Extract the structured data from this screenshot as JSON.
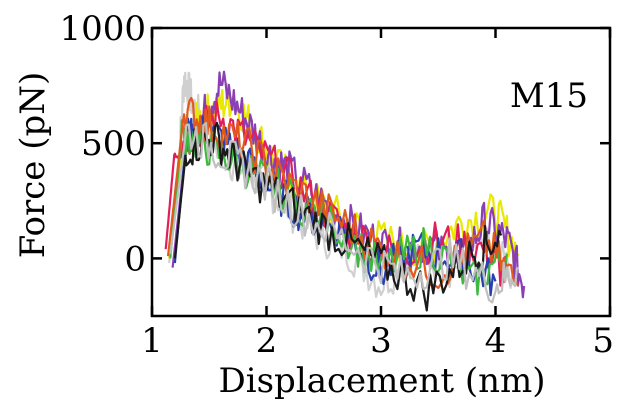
{
  "chart_data": {
    "type": "line",
    "title": "",
    "xlabel": "Displacement (nm)",
    "ylabel": "Force (pN)",
    "annotation": "M15",
    "xlim": [
      1,
      5
    ],
    "ylim": [
      -250,
      1000
    ],
    "x_ticks": [
      1,
      2,
      3,
      4,
      5
    ],
    "y_ticks": [
      0,
      500,
      1000
    ],
    "grid": false,
    "legend": "none",
    "series": [
      {
        "color": "#d0d0d0",
        "x": [
          1.15,
          1.22,
          1.28,
          1.35,
          1.5,
          1.7,
          1.9,
          2.1,
          2.4,
          2.7,
          3.0,
          3.3,
          3.6,
          3.9,
          4.15
        ],
        "y": [
          -20,
          300,
          790,
          680,
          520,
          420,
          360,
          260,
          120,
          40,
          -110,
          20,
          -40,
          60,
          -60
        ]
      },
      {
        "color": "#e8e800",
        "x": [
          1.15,
          1.25,
          1.4,
          1.55,
          1.7,
          1.9,
          2.1,
          2.4,
          2.7,
          3.0,
          3.4,
          3.7,
          4.0,
          4.2
        ],
        "y": [
          0,
          420,
          600,
          650,
          700,
          550,
          400,
          260,
          160,
          80,
          40,
          160,
          200,
          20
        ]
      },
      {
        "color": "#8a3fb5",
        "x": [
          1.18,
          1.3,
          1.45,
          1.6,
          1.8,
          2.0,
          2.2,
          2.5,
          2.8,
          3.1,
          3.4,
          3.7,
          3.9,
          4.1,
          4.25
        ],
        "y": [
          -40,
          500,
          620,
          760,
          620,
          460,
          380,
          240,
          120,
          40,
          60,
          -20,
          160,
          80,
          -120
        ]
      },
      {
        "color": "#e01e5a",
        "x": [
          1.12,
          1.2,
          1.35,
          1.6,
          1.9,
          2.3,
          2.7,
          3.1,
          3.5,
          3.9,
          4.1
        ],
        "y": [
          40,
          480,
          540,
          620,
          480,
          300,
          120,
          20,
          80,
          40,
          -80
        ]
      },
      {
        "color": "#2a3fb0",
        "x": [
          1.2,
          1.3,
          1.5,
          1.75,
          2.0,
          2.3,
          2.7,
          3.0,
          3.3,
          3.7,
          4.0
        ],
        "y": [
          -20,
          520,
          560,
          460,
          320,
          200,
          120,
          -60,
          40,
          0,
          -100
        ]
      },
      {
        "color": "#3fb83f",
        "x": [
          1.16,
          1.26,
          1.5,
          1.8,
          2.1,
          2.6,
          3.0,
          3.4,
          3.8,
          4.1
        ],
        "y": [
          0,
          540,
          480,
          400,
          300,
          140,
          -40,
          60,
          -100,
          20
        ]
      },
      {
        "color": "#e05a1e",
        "x": [
          1.14,
          1.28,
          1.5,
          1.85,
          2.2,
          2.6,
          3.0,
          3.5,
          3.9,
          4.2
        ],
        "y": [
          10,
          640,
          580,
          480,
          320,
          180,
          40,
          -60,
          80,
          -120
        ]
      },
      {
        "color": "#1a1a1a",
        "x": [
          1.2,
          1.3,
          1.55,
          1.8,
          2.2,
          2.6,
          3.0,
          3.4,
          3.8,
          4.05
        ],
        "y": [
          0,
          480,
          520,
          380,
          240,
          100,
          -20,
          -140,
          20,
          100
        ]
      },
      {
        "color": "#c0c0c0",
        "x": [
          1.16,
          1.3,
          1.6,
          1.9,
          2.3,
          2.8,
          3.2,
          3.6,
          4.0,
          4.2
        ],
        "y": [
          20,
          560,
          460,
          360,
          200,
          40,
          -80,
          0,
          -120,
          -40
        ]
      }
    ]
  }
}
